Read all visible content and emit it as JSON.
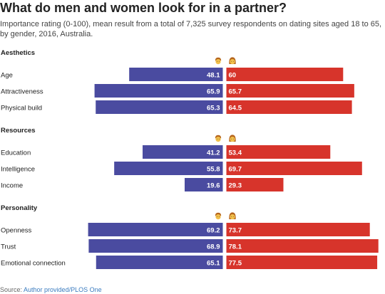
{
  "title": "What do men and women look for in a partner?",
  "subtitle": "Importance rating (0-100), mean result from a total of 7,325 survey respondents on dating sites aged 18 to 65, by gender, 2016, Australia.",
  "source": {
    "prefix": "Source: ",
    "link": "Author provided/PLOS One"
  },
  "colors": {
    "men": "#4a4ba0",
    "women": "#d7342b",
    "icon_skin": "#f2c04c",
    "icon_hair": "#b5651d"
  },
  "icons": {
    "men": "man-emoji-icon",
    "women": "woman-emoji-icon"
  },
  "chart_data": {
    "type": "bar",
    "orientation": "horizontal",
    "layout": "back-to-back",
    "xlim": [
      0,
      100
    ],
    "series": [
      {
        "name": "Men",
        "color": "#4a4ba0"
      },
      {
        "name": "Women",
        "color": "#d7342b"
      }
    ],
    "groups": [
      {
        "name": "Aesthetics",
        "categories": [
          {
            "label": "Age",
            "men": 48.1,
            "women": 60,
            "men_text": "48.1",
            "women_text": "60"
          },
          {
            "label": "Attractiveness",
            "men": 65.9,
            "women": 65.7,
            "men_text": "65.9",
            "women_text": "65.7"
          },
          {
            "label": "Physical build",
            "men": 65.3,
            "women": 64.5,
            "men_text": "65.3",
            "women_text": "64.5"
          }
        ]
      },
      {
        "name": "Resources",
        "categories": [
          {
            "label": "Education",
            "men": 41.2,
            "women": 53.4,
            "men_text": "41.2",
            "women_text": "53.4"
          },
          {
            "label": "Intelligence",
            "men": 55.8,
            "women": 69.7,
            "men_text": "55.8",
            "women_text": "69.7"
          },
          {
            "label": "Income",
            "men": 19.6,
            "women": 29.3,
            "men_text": "19.6",
            "women_text": "29.3"
          }
        ]
      },
      {
        "name": "Personality",
        "categories": [
          {
            "label": "Openness",
            "men": 69.2,
            "women": 73.7,
            "men_text": "69.2",
            "women_text": "73.7"
          },
          {
            "label": "Trust",
            "men": 68.9,
            "women": 78.1,
            "men_text": "68.9",
            "women_text": "78.1"
          },
          {
            "label": "Emotional connection",
            "men": 65.1,
            "women": 77.5,
            "men_text": "65.1",
            "women_text": "77.5"
          }
        ]
      }
    ]
  }
}
